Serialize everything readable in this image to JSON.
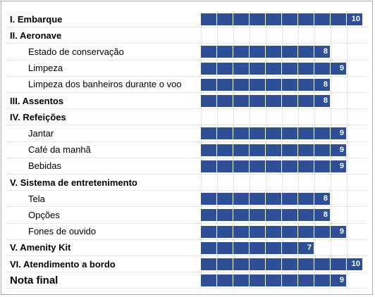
{
  "chart_data": {
    "type": "bar",
    "orientation": "horizontal",
    "xlim": [
      0,
      10
    ],
    "rows": [
      {
        "label": "I. Embarque",
        "kind": "section",
        "value": 10
      },
      {
        "label": "II. Aeronave",
        "kind": "section",
        "value": null
      },
      {
        "label": "Estado de conservação",
        "kind": "item",
        "value": 8
      },
      {
        "label": "Limpeza",
        "kind": "item",
        "value": 9
      },
      {
        "label": "Limpeza dos banheiros durante o voo",
        "kind": "item",
        "value": 8
      },
      {
        "label": "III. Assentos",
        "kind": "section",
        "value": 8
      },
      {
        "label": "IV. Refeições",
        "kind": "section",
        "value": null
      },
      {
        "label": "Jantar",
        "kind": "item",
        "value": 9
      },
      {
        "label": "Café da manhã",
        "kind": "item",
        "value": 9
      },
      {
        "label": "Bebidas",
        "kind": "item",
        "value": 9
      },
      {
        "label": "V. Sistema de entretenimento",
        "kind": "section",
        "value": null
      },
      {
        "label": "Tela",
        "kind": "item",
        "value": 8
      },
      {
        "label": "Opções",
        "kind": "item",
        "value": 8
      },
      {
        "label": "Fones de ouvido",
        "kind": "item",
        "value": 9
      },
      {
        "label": "V. Amenity Kit",
        "kind": "section",
        "value": 7
      },
      {
        "label": "VI. Atendimento a bordo",
        "kind": "section",
        "value": 10
      },
      {
        "label": "Nota final",
        "kind": "final",
        "value": 9
      }
    ]
  },
  "colors": {
    "bar": "#2e4f95",
    "border": "#a9a9a9",
    "gridline": "#d6d6d6"
  }
}
